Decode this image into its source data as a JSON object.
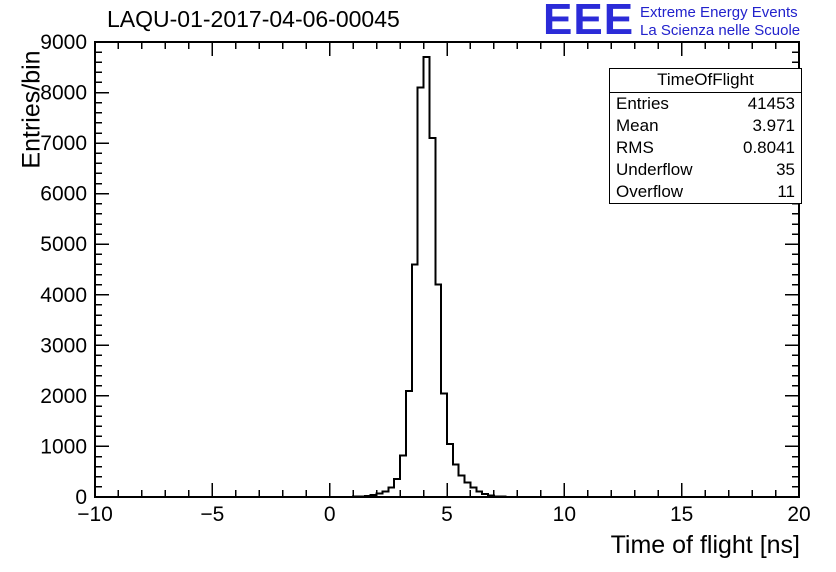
{
  "header": {
    "title": "LAQU-01-2017-04-06-00045"
  },
  "logo": {
    "text": "EEE",
    "line1": "Extreme Energy Events",
    "line2": "La Scienza nelle Scuole",
    "color": "#2b2bd8"
  },
  "stats": {
    "title": "TimeOfFlight",
    "rows": [
      {
        "label": "Entries",
        "value": "41453"
      },
      {
        "label": "Mean",
        "value": "3.971"
      },
      {
        "label": "RMS",
        "value": "0.8041"
      },
      {
        "label": "Underflow",
        "value": "35"
      },
      {
        "label": "Overflow",
        "value": "11"
      }
    ]
  },
  "chart_data": {
    "type": "bar",
    "subtype": "histogram-step",
    "title": "LAQU-01-2017-04-06-00045",
    "xlabel": "Time of flight [ns]",
    "ylabel": "Entries/bin",
    "xlim": [
      -10,
      20
    ],
    "ylim": [
      0,
      9000
    ],
    "grid": false,
    "legend": "none",
    "line_color": "#000000",
    "xticks": {
      "major": [
        -10,
        -5,
        0,
        5,
        10,
        15,
        20
      ],
      "labels": [
        "−10",
        "−5",
        "0",
        "5",
        "10",
        "15",
        "20"
      ],
      "minor_step": 1
    },
    "yticks": {
      "major": [
        0,
        1000,
        2000,
        3000,
        4000,
        5000,
        6000,
        7000,
        8000,
        9000
      ],
      "labels": [
        "0",
        "1000",
        "2000",
        "3000",
        "4000",
        "5000",
        "6000",
        "7000",
        "8000",
        "9000"
      ],
      "minor_step": 200
    },
    "bins": {
      "start": 0.5,
      "width": 0.25,
      "values": [
        2,
        4,
        8,
        14,
        22,
        38,
        65,
        110,
        190,
        360,
        820,
        2100,
        4600,
        8100,
        8700,
        7100,
        4200,
        2050,
        1050,
        640,
        430,
        290,
        185,
        110,
        60,
        30,
        14,
        6,
        2
      ]
    }
  }
}
